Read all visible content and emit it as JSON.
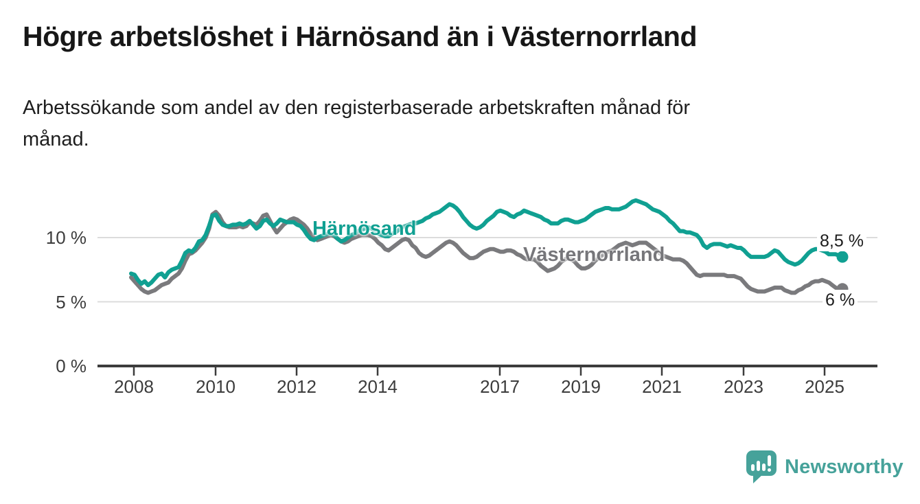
{
  "header": {
    "title": "Högre arbetslöshet i Härnösand än i Västernorrland",
    "subtitle_line1": "Arbetssökande som andel av den registerbaserade arbetskraften månad för",
    "subtitle_line2": "månad."
  },
  "footer": {
    "brand": "Newsworthy"
  },
  "colors": {
    "harnosand": "#10a092",
    "vasternorrland": "#7a7a7d",
    "grid": "#dcdcdc",
    "axis": "#3c3c3c",
    "logo_teal": "#46a29a"
  },
  "chart_data": {
    "type": "line",
    "x_unit": "month",
    "x_start": "2008-01",
    "x_end": "2025-07",
    "x_ticks": [
      "2008",
      "2010",
      "2012",
      "2014",
      "2017",
      "2019",
      "2021",
      "2023",
      "2025"
    ],
    "y_ticks": [
      "10 %",
      "5 %",
      "0 %"
    ],
    "y_tick_values": [
      10,
      5,
      0
    ],
    "ylim": [
      0,
      13.5
    ],
    "grid": "horizontal",
    "legend_position": "inline-on-line",
    "series": [
      {
        "name": "Härnösand",
        "color": "#10a092",
        "end_label": "8,5 %",
        "last_value": 8.5,
        "values": [
          7.2,
          7.1,
          6.7,
          6.4,
          6.6,
          6.3,
          6.5,
          6.8,
          7.1,
          7.2,
          6.9,
          7.3,
          7.5,
          7.6,
          7.7,
          8.2,
          8.8,
          9.0,
          8.9,
          9.2,
          9.7,
          9.8,
          10.2,
          10.9,
          11.7,
          11.8,
          11.3,
          11.0,
          10.9,
          10.9,
          11.0,
          11.0,
          11.1,
          11.0,
          11.1,
          11.3,
          11.0,
          10.7,
          10.9,
          11.3,
          11.4,
          11.1,
          10.9,
          11.1,
          11.4,
          11.3,
          11.2,
          11.2,
          11.2,
          11.0,
          10.9,
          10.6,
          10.2,
          9.9,
          9.8,
          10.0,
          10.1,
          10.2,
          10.3,
          10.3,
          10.2,
          9.9,
          9.7,
          9.8,
          10.0,
          10.2,
          10.3,
          10.5,
          10.6,
          10.7,
          10.8,
          10.7,
          10.5,
          10.3,
          10.2,
          10.1,
          10.1,
          10.3,
          10.4,
          10.6,
          10.8,
          10.9,
          11.0,
          11.1,
          11.1,
          11.2,
          11.3,
          11.5,
          11.6,
          11.8,
          11.9,
          12.0,
          12.2,
          12.4,
          12.6,
          12.5,
          12.3,
          12.0,
          11.6,
          11.3,
          11.0,
          10.8,
          10.7,
          10.8,
          11.0,
          11.3,
          11.5,
          11.7,
          12.0,
          12.1,
          12.0,
          11.9,
          11.7,
          11.6,
          11.8,
          11.9,
          12.1,
          12.0,
          11.9,
          11.8,
          11.7,
          11.6,
          11.4,
          11.3,
          11.1,
          11.1,
          11.1,
          11.3,
          11.4,
          11.4,
          11.3,
          11.2,
          11.2,
          11.3,
          11.4,
          11.6,
          11.8,
          12.0,
          12.1,
          12.2,
          12.3,
          12.3,
          12.2,
          12.2,
          12.2,
          12.3,
          12.4,
          12.6,
          12.8,
          12.9,
          12.8,
          12.7,
          12.6,
          12.4,
          12.2,
          12.1,
          12.0,
          11.8,
          11.6,
          11.3,
          11.1,
          10.8,
          10.5,
          10.5,
          10.4,
          10.4,
          10.3,
          10.2,
          9.9,
          9.4,
          9.2,
          9.4,
          9.5,
          9.5,
          9.5,
          9.4,
          9.3,
          9.4,
          9.3,
          9.2,
          9.2,
          9.0,
          8.7,
          8.5,
          8.5,
          8.5,
          8.5,
          8.5,
          8.6,
          8.8,
          9.0,
          8.9,
          8.6,
          8.3,
          8.1,
          8.0,
          7.9,
          8.0,
          8.2,
          8.5,
          8.8,
          9.0,
          9.1,
          9.1,
          9.0,
          8.9,
          8.7,
          8.7,
          8.7,
          8.6,
          8.5
        ]
      },
      {
        "name": "Västernorrland",
        "color": "#7a7a7d",
        "end_label": "6 %",
        "last_value": 6.0,
        "values": [
          6.9,
          6.6,
          6.3,
          6.0,
          5.8,
          5.7,
          5.8,
          5.9,
          6.1,
          6.3,
          6.4,
          6.5,
          6.8,
          7.0,
          7.2,
          7.6,
          8.2,
          8.7,
          8.8,
          9.0,
          9.3,
          9.6,
          10.0,
          10.7,
          11.8,
          12.0,
          11.7,
          11.2,
          10.9,
          10.8,
          10.8,
          10.8,
          10.9,
          10.8,
          10.9,
          11.2,
          11.1,
          11.0,
          11.3,
          11.7,
          11.8,
          11.3,
          10.8,
          10.4,
          10.7,
          11.0,
          11.2,
          11.4,
          11.5,
          11.4,
          11.2,
          11.0,
          10.7,
          10.3,
          10.0,
          9.8,
          9.9,
          10.0,
          10.1,
          10.2,
          10.1,
          9.9,
          9.7,
          9.6,
          9.7,
          9.9,
          10.0,
          10.1,
          10.2,
          10.2,
          10.2,
          10.1,
          9.9,
          9.6,
          9.4,
          9.1,
          9.0,
          9.2,
          9.4,
          9.6,
          9.8,
          9.9,
          9.8,
          9.4,
          9.2,
          8.8,
          8.6,
          8.5,
          8.6,
          8.8,
          9.0,
          9.2,
          9.4,
          9.6,
          9.7,
          9.6,
          9.4,
          9.1,
          8.8,
          8.6,
          8.4,
          8.4,
          8.5,
          8.7,
          8.9,
          9.0,
          9.1,
          9.1,
          9.0,
          8.9,
          8.9,
          9.0,
          9.0,
          8.9,
          8.7,
          8.6,
          8.4,
          8.3,
          8.3,
          8.3,
          8.1,
          7.8,
          7.6,
          7.4,
          7.5,
          7.6,
          7.8,
          8.1,
          8.3,
          8.4,
          8.3,
          8.1,
          7.8,
          7.6,
          7.6,
          7.7,
          7.9,
          8.2,
          8.4,
          8.6,
          8.8,
          8.9,
          9.0,
          9.2,
          9.4,
          9.5,
          9.6,
          9.5,
          9.4,
          9.5,
          9.6,
          9.6,
          9.6,
          9.4,
          9.2,
          9.0,
          8.8,
          8.6,
          8.5,
          8.4,
          8.3,
          8.3,
          8.3,
          8.2,
          8.0,
          7.7,
          7.4,
          7.1,
          7.0,
          7.1,
          7.1,
          7.1,
          7.1,
          7.1,
          7.1,
          7.1,
          7.0,
          7.0,
          7.0,
          6.9,
          6.8,
          6.5,
          6.2,
          6.0,
          5.9,
          5.8,
          5.8,
          5.8,
          5.9,
          6.0,
          6.1,
          6.1,
          6.1,
          5.9,
          5.8,
          5.7,
          5.7,
          5.9,
          6.0,
          6.2,
          6.3,
          6.5,
          6.6,
          6.6,
          6.7,
          6.6,
          6.5,
          6.3,
          6.1,
          6.0,
          6.0
        ]
      }
    ]
  }
}
